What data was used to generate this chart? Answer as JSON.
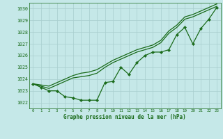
{
  "title": "Graphe pression niveau de la mer (hPa)",
  "background_color": "#c5e8e8",
  "grid_color": "#a8cece",
  "line_color": "#1a6b1a",
  "xlim": [
    -0.5,
    23.5
  ],
  "ylim": [
    1021.5,
    1030.5
  ],
  "yticks": [
    1022,
    1023,
    1024,
    1025,
    1026,
    1027,
    1028,
    1029,
    1030
  ],
  "xticks": [
    0,
    1,
    2,
    3,
    4,
    5,
    6,
    7,
    8,
    9,
    10,
    11,
    12,
    13,
    14,
    15,
    16,
    17,
    18,
    19,
    20,
    21,
    22,
    23
  ],
  "hours": [
    0,
    1,
    2,
    3,
    4,
    5,
    6,
    7,
    8,
    9,
    10,
    11,
    12,
    13,
    14,
    15,
    16,
    17,
    18,
    19,
    20,
    21,
    22,
    23
  ],
  "line_main": [
    1023.6,
    1023.3,
    1023.0,
    1023.0,
    1022.5,
    1022.4,
    1022.2,
    1022.2,
    1022.2,
    1023.7,
    1023.8,
    1025.0,
    1024.4,
    1025.4,
    1026.0,
    1026.3,
    1026.3,
    1026.5,
    1027.8,
    1028.4,
    1027.0,
    1028.3,
    1029.1,
    1030.1
  ],
  "line_upper1": [
    1023.6,
    1023.4,
    1023.2,
    1023.5,
    1023.8,
    1024.1,
    1024.2,
    1024.3,
    1024.5,
    1025.0,
    1025.4,
    1025.7,
    1026.0,
    1026.3,
    1026.5,
    1026.7,
    1027.1,
    1027.9,
    1028.4,
    1029.1,
    1029.3,
    1029.6,
    1029.9,
    1030.2
  ],
  "line_upper2": [
    1023.6,
    1023.5,
    1023.4,
    1023.7,
    1024.0,
    1024.3,
    1024.5,
    1024.6,
    1024.8,
    1025.2,
    1025.6,
    1025.9,
    1026.2,
    1026.5,
    1026.7,
    1026.9,
    1027.3,
    1028.1,
    1028.6,
    1029.3,
    1029.5,
    1029.8,
    1030.1,
    1030.4
  ]
}
